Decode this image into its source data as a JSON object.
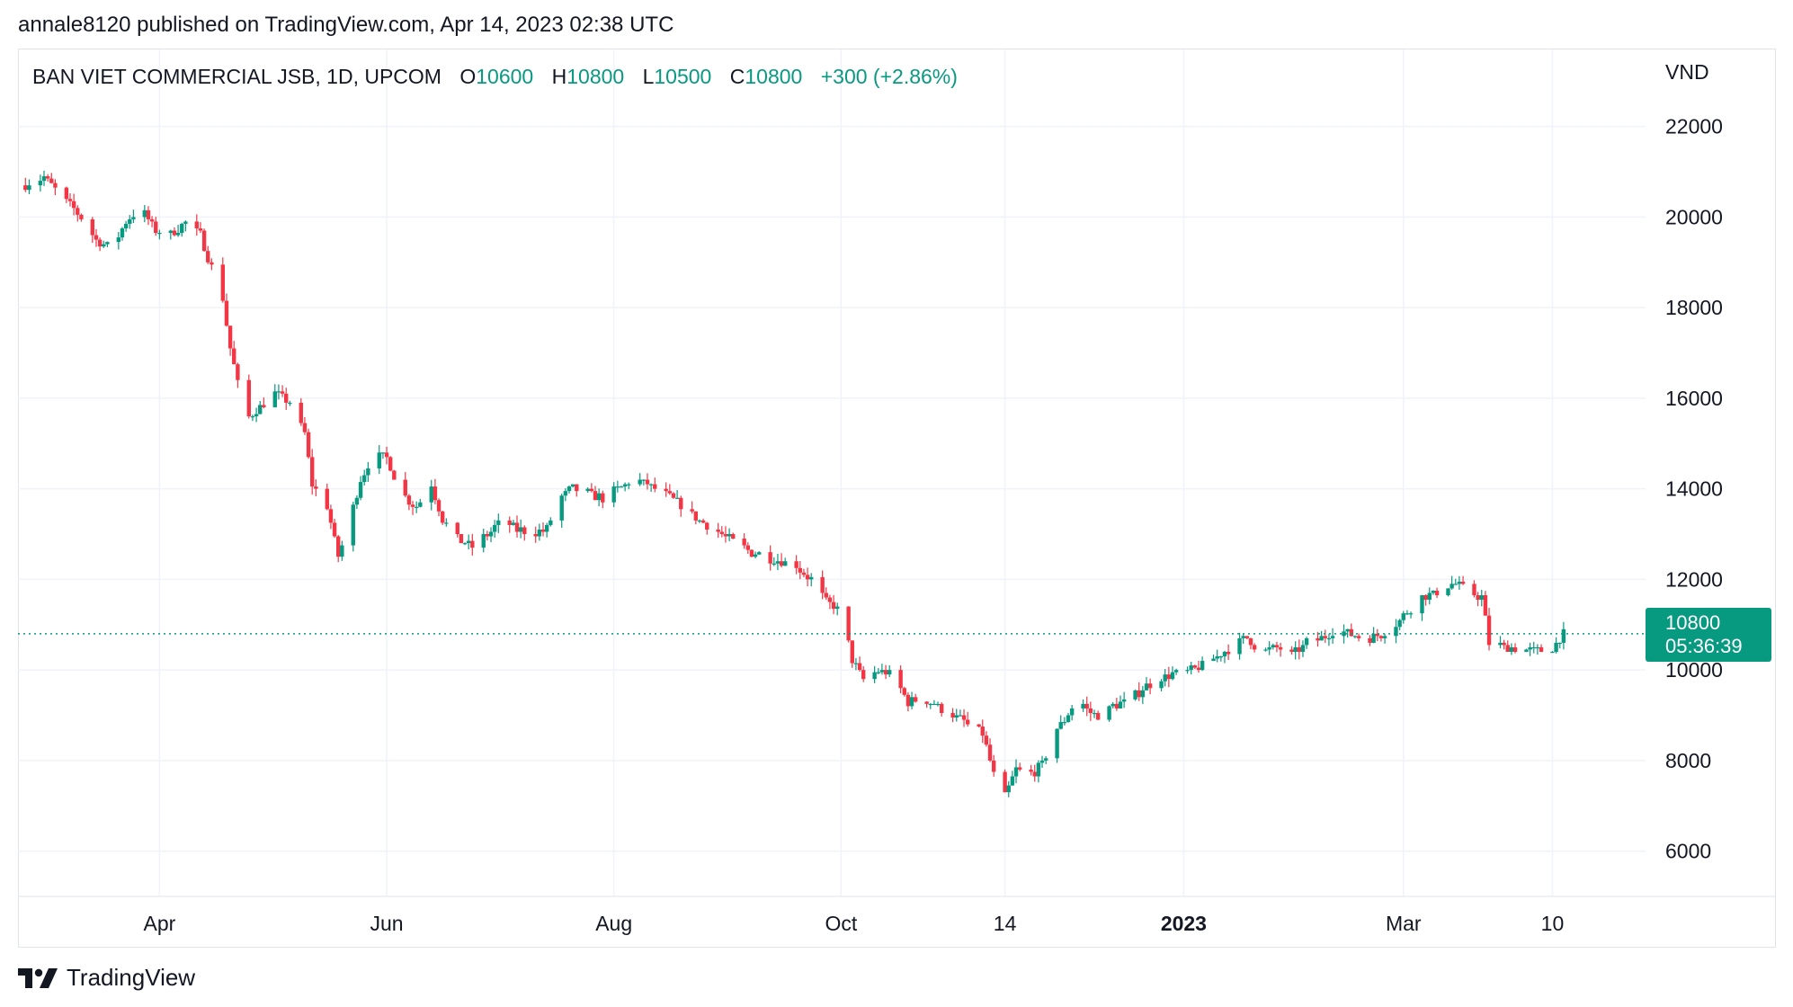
{
  "header": {
    "published_by": "annale8120 published on TradingView.com, Apr 14, 2023 02:38 UTC"
  },
  "legend": {
    "symbol": "BAN VIET COMMERCIAL JSB, 1D, UPCOM",
    "open_label": "O",
    "open_value": "10600",
    "high_label": "H",
    "high_value": "10800",
    "low_label": "L",
    "low_value": "10500",
    "close_label": "C",
    "close_value": "10800",
    "change": "+300 (+2.86%)"
  },
  "price_tag": {
    "price": "10800",
    "countdown": "05:36:39"
  },
  "brand": {
    "name": "TradingView"
  },
  "colors": {
    "up": "#089981",
    "down": "#f23645",
    "grid": "#f0f3fa",
    "axis_text": "#131722"
  },
  "chart_data": {
    "type": "candlestick",
    "currency": "VND",
    "ylim": [
      5000,
      23700
    ],
    "y_ticks": [
      6000,
      8000,
      10000,
      12000,
      14000,
      16000,
      18000,
      20000,
      22000
    ],
    "x_ticks": [
      {
        "label": "Apr",
        "date": "2022-04-01"
      },
      {
        "label": "Jun",
        "date": "2022-06-01"
      },
      {
        "label": "Aug",
        "date": "2022-08-01"
      },
      {
        "label": "Oct",
        "date": "2022-10-01"
      },
      {
        "label": "14",
        "date": "2022-11-14"
      },
      {
        "label": "2023",
        "date": "2023-01-01",
        "bold": true
      },
      {
        "label": "Mar",
        "date": "2023-03-01"
      },
      {
        "label": "10",
        "date": "2023-04-10"
      }
    ],
    "last_price": 10800,
    "grid": true,
    "close_series": [
      [
        "2022-02-24",
        20700
      ],
      [
        "2022-03-01",
        20900
      ],
      [
        "2022-03-05",
        20500
      ],
      [
        "2022-03-10",
        20100
      ],
      [
        "2022-03-15",
        19500
      ],
      [
        "2022-03-19",
        19300
      ],
      [
        "2022-03-23",
        19900
      ],
      [
        "2022-03-27",
        20200
      ],
      [
        "2022-03-31",
        19700
      ],
      [
        "2022-04-04",
        19600
      ],
      [
        "2022-04-08",
        19900
      ],
      [
        "2022-04-12",
        19600
      ],
      [
        "2022-04-15",
        18900
      ],
      [
        "2022-04-18",
        18200
      ],
      [
        "2022-04-20",
        17100
      ],
      [
        "2022-04-22",
        16300
      ],
      [
        "2022-04-25",
        15600
      ],
      [
        "2022-04-28",
        15800
      ],
      [
        "2022-05-02",
        16100
      ],
      [
        "2022-05-06",
        15900
      ],
      [
        "2022-05-10",
        15200
      ],
      [
        "2022-05-12",
        14100
      ],
      [
        "2022-05-16",
        13600
      ],
      [
        "2022-05-19",
        12500
      ],
      [
        "2022-05-22",
        13300
      ],
      [
        "2022-05-25",
        14200
      ],
      [
        "2022-05-28",
        14700
      ],
      [
        "2022-06-01",
        14700
      ],
      [
        "2022-06-05",
        13900
      ],
      [
        "2022-06-09",
        13600
      ],
      [
        "2022-06-13",
        14100
      ],
      [
        "2022-06-16",
        13300
      ],
      [
        "2022-06-20",
        12900
      ],
      [
        "2022-06-24",
        12700
      ],
      [
        "2022-06-28",
        13000
      ],
      [
        "2022-07-02",
        13300
      ],
      [
        "2022-07-06",
        13100
      ],
      [
        "2022-07-10",
        13000
      ],
      [
        "2022-07-14",
        13100
      ],
      [
        "2022-07-17",
        13800
      ],
      [
        "2022-07-21",
        14000
      ],
      [
        "2022-07-25",
        13900
      ],
      [
        "2022-07-29",
        13800
      ],
      [
        "2022-08-02",
        14000
      ],
      [
        "2022-08-06",
        14200
      ],
      [
        "2022-08-10",
        14100
      ],
      [
        "2022-08-14",
        13900
      ],
      [
        "2022-08-18",
        13700
      ],
      [
        "2022-08-22",
        13400
      ],
      [
        "2022-08-26",
        13200
      ],
      [
        "2022-08-30",
        13000
      ],
      [
        "2022-09-03",
        12800
      ],
      [
        "2022-09-07",
        12600
      ],
      [
        "2022-09-11",
        12500
      ],
      [
        "2022-09-15",
        12400
      ],
      [
        "2022-09-19",
        12300
      ],
      [
        "2022-09-23",
        12000
      ],
      [
        "2022-09-27",
        11500
      ],
      [
        "2022-10-01",
        11300
      ],
      [
        "2022-10-04",
        10200
      ],
      [
        "2022-10-07",
        9800
      ],
      [
        "2022-10-11",
        10000
      ],
      [
        "2022-10-15",
        9900
      ],
      [
        "2022-10-19",
        9300
      ],
      [
        "2022-10-23",
        9400
      ],
      [
        "2022-10-27",
        9200
      ],
      [
        "2022-10-31",
        9000
      ],
      [
        "2022-11-04",
        8800
      ],
      [
        "2022-11-08",
        8600
      ],
      [
        "2022-11-11",
        7700
      ],
      [
        "2022-11-14",
        7200
      ],
      [
        "2022-11-17",
        7800
      ],
      [
        "2022-11-21",
        7700
      ],
      [
        "2022-11-24",
        7900
      ],
      [
        "2022-11-27",
        8600
      ],
      [
        "2022-11-30",
        8900
      ],
      [
        "2022-12-02",
        9200
      ],
      [
        "2022-12-04",
        9400
      ],
      [
        "2022-12-06",
        9100
      ],
      [
        "2022-12-09",
        9000
      ],
      [
        "2022-12-13",
        9200
      ],
      [
        "2022-12-17",
        9300
      ],
      [
        "2022-12-21",
        9600
      ],
      [
        "2022-12-25",
        9800
      ],
      [
        "2022-12-29",
        9900
      ],
      [
        "2023-01-02",
        9950
      ],
      [
        "2023-01-06",
        10100
      ],
      [
        "2023-01-10",
        10300
      ],
      [
        "2023-01-14",
        10500
      ],
      [
        "2023-01-18",
        10700
      ],
      [
        "2023-01-22",
        10400
      ],
      [
        "2023-01-26",
        10500
      ],
      [
        "2023-01-30",
        10300
      ],
      [
        "2023-02-03",
        10600
      ],
      [
        "2023-02-07",
        10700
      ],
      [
        "2023-02-11",
        10900
      ],
      [
        "2023-02-15",
        10800
      ],
      [
        "2023-02-19",
        10700
      ],
      [
        "2023-02-23",
        10800
      ],
      [
        "2023-02-27",
        11000
      ],
      [
        "2023-03-02",
        11300
      ],
      [
        "2023-03-06",
        11600
      ],
      [
        "2023-03-10",
        11700
      ],
      [
        "2023-03-14",
        11900
      ],
      [
        "2023-03-18",
        11800
      ],
      [
        "2023-03-22",
        11600
      ],
      [
        "2023-03-24",
        10600
      ],
      [
        "2023-03-28",
        10500
      ],
      [
        "2023-04-01",
        10500
      ],
      [
        "2023-04-05",
        10400
      ],
      [
        "2023-04-10",
        10500
      ],
      [
        "2023-04-13",
        10800
      ]
    ]
  }
}
